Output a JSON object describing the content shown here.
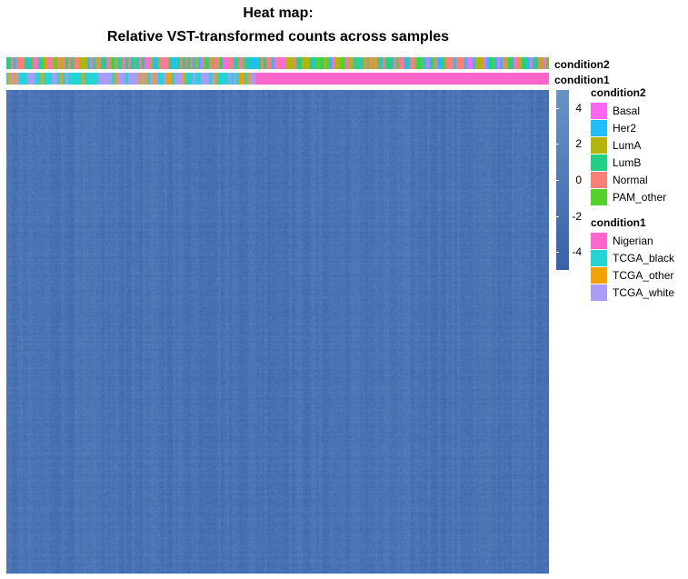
{
  "chart_data": {
    "type": "heatmap",
    "title": "Heat map:",
    "subtitle": "Relative VST-transformed counts across samples",
    "colorbar": {
      "ticks": [
        4,
        2,
        0,
        -2,
        -4
      ],
      "range": [
        -5,
        5
      ],
      "low_color": "#3c60a8",
      "high_color": "#6a93c6"
    },
    "cell_base_color": "#4a73b5",
    "annotations": [
      {
        "name": "condition2",
        "levels": [
          "Basal",
          "Her2",
          "LumA",
          "LumB",
          "Normal",
          "PAM_other"
        ],
        "colors": [
          "#ff66f0",
          "#1fbfff",
          "#b4b40a",
          "#21d083",
          "#fa7f76",
          "#52d22a"
        ]
      },
      {
        "name": "condition1",
        "levels": [
          "Nigerian",
          "TCGA_black",
          "TCGA_other",
          "TCGA_white"
        ],
        "colors": [
          "#ff66cc",
          "#22d4d4",
          "#f3a100",
          "#a89cf5"
        ],
        "nigerian_start_fraction": 0.46
      }
    ]
  }
}
